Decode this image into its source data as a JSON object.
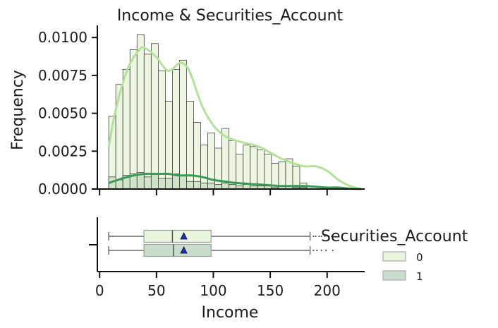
{
  "chart_data": [
    {
      "type": "histogram",
      "title": "Income & Securities_Account",
      "xlabel": "",
      "ylabel": "Frequency",
      "xlim": [
        -2,
        233
      ],
      "ylim": [
        0,
        0.0108
      ],
      "yticks": [
        0,
        0.0025,
        0.005,
        0.0075,
        0.01
      ],
      "ytick_labels": [
        "0.0000",
        "0.0025",
        "0.0050",
        "0.0075",
        "0.0100"
      ],
      "xticks": [
        0,
        50,
        100,
        150,
        200
      ],
      "bin_start": 8,
      "bin_width": 6.22,
      "series": [
        {
          "name": "0",
          "color": "#e9f5dc",
          "kde_color": "#b3e09a",
          "values": [
            0.0048,
            0.0069,
            0.0079,
            0.0092,
            0.0102,
            0.0089,
            0.0096,
            0.0078,
            0.0058,
            0.0079,
            0.0085,
            0.0058,
            0.0044,
            0.0029,
            0.0037,
            0.0027,
            0.004,
            0.0032,
            0.0023,
            0.0029,
            0.0028,
            0.0026,
            0.0023,
            0.0017,
            0.0018,
            0.002,
            0.0015,
            0.0004
          ],
          "kde_x": [
            8,
            15,
            25,
            35,
            40,
            50,
            60,
            70,
            75,
            80,
            90,
            100,
            110,
            120,
            130,
            140,
            150,
            160,
            170,
            180,
            190,
            200,
            210,
            220,
            230
          ],
          "kde_y": [
            0.0028,
            0.0055,
            0.008,
            0.0092,
            0.0093,
            0.0087,
            0.0078,
            0.0083,
            0.0082,
            0.0076,
            0.0055,
            0.0042,
            0.0035,
            0.0032,
            0.003,
            0.0028,
            0.0024,
            0.002,
            0.0017,
            0.0015,
            0.0015,
            0.0012,
            0.0006,
            0.0002,
            0.0
          ]
        },
        {
          "name": "1",
          "color": "#cde3c5",
          "kde_color": "#3a9a55",
          "values": [
            0.0008,
            0.0006,
            0.0009,
            0.001,
            0.0011,
            0.0008,
            0.001,
            0.0007,
            0.0007,
            0.001,
            0.0009,
            0.0005,
            0.0005,
            0.0004,
            0.0004,
            0.0003,
            0.0004,
            0.0003,
            0.0002,
            0.0003,
            0.0002,
            0.0002,
            0.0002,
            0.0001,
            0.0002,
            0.0002,
            0.0001,
            0.0001
          ],
          "kde_x": [
            8,
            20,
            30,
            40,
            50,
            60,
            70,
            80,
            90,
            100,
            110,
            120,
            140,
            160,
            180,
            200,
            210,
            220,
            230
          ],
          "kde_y": [
            0.0004,
            0.0007,
            0.0009,
            0.001,
            0.001,
            0.001,
            0.0009,
            0.0009,
            0.0008,
            0.0006,
            0.0005,
            0.0004,
            0.0003,
            0.0002,
            0.0002,
            0.0001,
            0.0001,
            3e-05,
            0.0
          ]
        }
      ]
    },
    {
      "type": "box",
      "xlabel": "Income",
      "xlim": [
        -2,
        233
      ],
      "xticks": [
        0,
        50,
        100,
        150,
        200
      ],
      "xtick_labels": [
        "0",
        "50",
        "100",
        "150",
        "200"
      ],
      "series": [
        {
          "name": "0",
          "color": "#e9f5dc",
          "whisker_low": 8,
          "q1": 39,
          "median": 64,
          "q3": 98,
          "whisker_high": 185,
          "mean": 74,
          "outliers": [
            188,
            190,
            193,
            195,
            198,
            201,
            204
          ]
        },
        {
          "name": "1",
          "color": "#c8ddcc",
          "whisker_low": 8,
          "q1": 39,
          "median": 65,
          "q3": 98,
          "whisker_high": 185,
          "mean": 74,
          "outliers": [
            188,
            191,
            195,
            199,
            205
          ]
        }
      ],
      "legend": {
        "title": "Securities_Account",
        "labels": [
          "0",
          "1"
        ],
        "placement": "right"
      }
    }
  ]
}
